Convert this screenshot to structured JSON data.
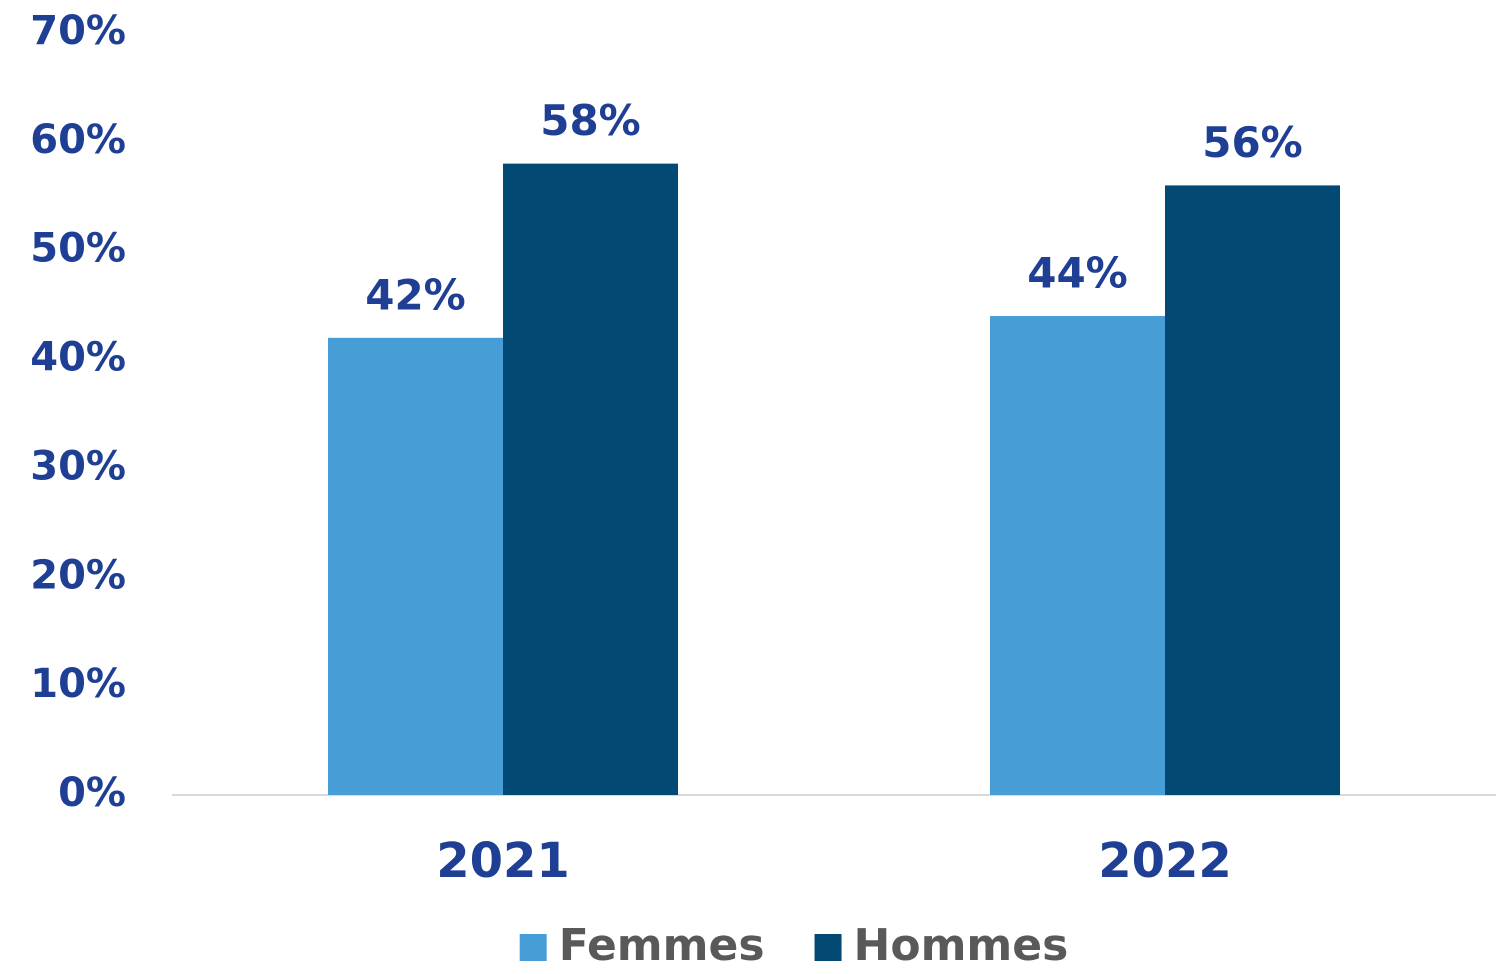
{
  "chart_data": {
    "type": "bar",
    "categories": [
      "2021",
      "2022"
    ],
    "series": [
      {
        "name": "Femmes",
        "color": "#479ed6",
        "values": [
          42,
          44
        ],
        "value_labels": [
          "42%",
          "44%"
        ]
      },
      {
        "name": "Hommes",
        "color": "#024a74",
        "values": [
          58,
          56
        ],
        "value_labels": [
          "58%",
          "56%"
        ]
      }
    ],
    "ylim": [
      0,
      70
    ],
    "yticks": [
      {
        "value": 0,
        "label": "0%"
      },
      {
        "value": 10,
        "label": "10%"
      },
      {
        "value": 20,
        "label": "20%"
      },
      {
        "value": 30,
        "label": "30%"
      },
      {
        "value": 40,
        "label": "40%"
      },
      {
        "value": 50,
        "label": "50%"
      },
      {
        "value": 60,
        "label": "60%"
      },
      {
        "value": 70,
        "label": "70%"
      }
    ],
    "grid": false,
    "legend": "bottom"
  }
}
